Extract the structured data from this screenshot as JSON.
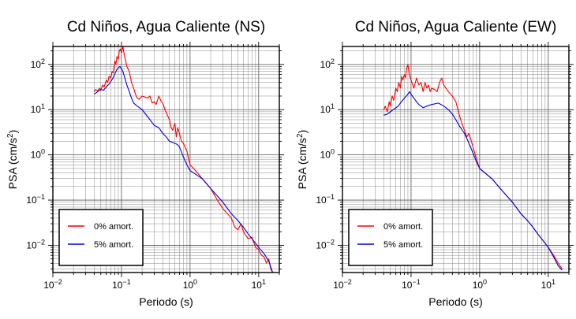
{
  "figure": {
    "background_color": "#ffffff"
  },
  "chart_data": [
    {
      "type": "line",
      "title": "Cd Niños, Agua Caliente (NS)",
      "xlabel": "Periodo (s)",
      "ylabel_text": "PSA (cm/s",
      "ylabel_sup": "2",
      "ylabel_close": ")",
      "xscale": "log",
      "yscale": "log",
      "xlim": [
        0.01,
        20
      ],
      "ylim": [
        0.0025,
        250
      ],
      "grid": true,
      "legend_placement": "bottom-left",
      "x_ticks": [
        {
          "value": 0.01,
          "base": "10",
          "exp": "−2"
        },
        {
          "value": 0.1,
          "base": "10",
          "exp": "−1"
        },
        {
          "value": 1,
          "base": "10",
          "exp": "0"
        },
        {
          "value": 10,
          "base": "10",
          "exp": "1"
        }
      ],
      "y_ticks": [
        {
          "value": 0.01,
          "base": "10",
          "exp": "−2"
        },
        {
          "value": 0.1,
          "base": "10",
          "exp": "−1"
        },
        {
          "value": 1,
          "base": "10",
          "exp": "0"
        },
        {
          "value": 10,
          "base": "10",
          "exp": "1"
        },
        {
          "value": 100,
          "base": "10",
          "exp": "2"
        }
      ],
      "series": [
        {
          "name": "0% amort.",
          "color": "#ff0000",
          "x": [
            0.04,
            0.042,
            0.045,
            0.048,
            0.05,
            0.053,
            0.056,
            0.06,
            0.063,
            0.066,
            0.07,
            0.073,
            0.076,
            0.08,
            0.083,
            0.086,
            0.09,
            0.093,
            0.096,
            0.1,
            0.105,
            0.11,
            0.115,
            0.12,
            0.13,
            0.14,
            0.15,
            0.16,
            0.17,
            0.18,
            0.2,
            0.22,
            0.24,
            0.26,
            0.28,
            0.3,
            0.32,
            0.35,
            0.38,
            0.4,
            0.43,
            0.46,
            0.5,
            0.53,
            0.56,
            0.6,
            0.63,
            0.66,
            0.7,
            0.75,
            0.8,
            0.9,
            1.0,
            1.2,
            1.5,
            2.0,
            2.5,
            3.0,
            3.5,
            4.0,
            4.5,
            5.0,
            5.5,
            6.0,
            7.0,
            8.0,
            9.0,
            10.0,
            11.0,
            12.0,
            13.0,
            14.0,
            15.0,
            16.0
          ],
          "y": [
            25,
            28,
            26,
            30,
            27,
            35,
            32,
            45,
            40,
            55,
            50,
            70,
            65,
            120,
            100,
            150,
            130,
            200,
            220,
            180,
            250,
            160,
            120,
            90,
            70,
            40,
            30,
            22,
            18,
            17,
            20,
            19,
            18,
            20,
            14,
            15,
            13,
            20,
            15,
            14,
            10,
            8,
            6,
            4,
            3.5,
            5,
            2.5,
            4,
            3,
            2,
            1.8,
            1.2,
            0.6,
            0.45,
            0.3,
            0.18,
            0.1,
            0.065,
            0.05,
            0.04,
            0.025,
            0.022,
            0.03,
            0.02,
            0.014,
            0.015,
            0.009,
            0.008,
            0.006,
            0.0055,
            0.004,
            0.005,
            0.003,
            0.0025
          ]
        },
        {
          "name": "5% amort.",
          "color": "#0000dd",
          "x": [
            0.04,
            0.045,
            0.05,
            0.055,
            0.06,
            0.065,
            0.07,
            0.075,
            0.08,
            0.085,
            0.09,
            0.095,
            0.1,
            0.105,
            0.11,
            0.12,
            0.13,
            0.14,
            0.15,
            0.17,
            0.2,
            0.25,
            0.3,
            0.35,
            0.4,
            0.45,
            0.5,
            0.55,
            0.6,
            0.65,
            0.7,
            0.8,
            0.9,
            1.0,
            1.5,
            2.0,
            3.0,
            4.0,
            5.0,
            6.0,
            7.0,
            8.0,
            10.0,
            12.0,
            14.0,
            16.0
          ],
          "y": [
            22,
            25,
            28,
            27,
            32,
            36,
            42,
            50,
            62,
            75,
            85,
            90,
            80,
            70,
            55,
            35,
            25,
            18,
            14,
            12,
            10,
            6.5,
            4.5,
            4.0,
            3.0,
            2.5,
            2.0,
            1.9,
            1.8,
            1.7,
            1.5,
            0.9,
            0.6,
            0.45,
            0.3,
            0.18,
            0.09,
            0.05,
            0.035,
            0.025,
            0.018,
            0.014,
            0.009,
            0.0065,
            0.0045,
            0.0025
          ]
        }
      ]
    },
    {
      "type": "line",
      "title": "Cd Niños, Agua Caliente (EW)",
      "xlabel": "Periodo (s)",
      "ylabel_text": "PSA (cm/s",
      "ylabel_sup": "2",
      "ylabel_close": ")",
      "xscale": "log",
      "yscale": "log",
      "xlim": [
        0.01,
        20
      ],
      "ylim": [
        0.0025,
        250
      ],
      "grid": true,
      "legend_placement": "bottom-left",
      "x_ticks": [
        {
          "value": 0.01,
          "base": "10",
          "exp": "−2"
        },
        {
          "value": 0.1,
          "base": "10",
          "exp": "−1"
        },
        {
          "value": 1,
          "base": "10",
          "exp": "0"
        },
        {
          "value": 10,
          "base": "10",
          "exp": "1"
        }
      ],
      "y_ticks": [
        {
          "value": 0.01,
          "base": "10",
          "exp": "−2"
        },
        {
          "value": 0.1,
          "base": "10",
          "exp": "−1"
        },
        {
          "value": 1,
          "base": "10",
          "exp": "0"
        },
        {
          "value": 10,
          "base": "10",
          "exp": "1"
        },
        {
          "value": 100,
          "base": "10",
          "exp": "2"
        }
      ],
      "series": [
        {
          "name": "0% amort.",
          "color": "#ff0000",
          "x": [
            0.04,
            0.042,
            0.045,
            0.048,
            0.05,
            0.053,
            0.056,
            0.06,
            0.063,
            0.066,
            0.07,
            0.073,
            0.076,
            0.08,
            0.083,
            0.086,
            0.09,
            0.093,
            0.096,
            0.1,
            0.11,
            0.12,
            0.13,
            0.14,
            0.15,
            0.16,
            0.17,
            0.18,
            0.19,
            0.2,
            0.22,
            0.24,
            0.26,
            0.28,
            0.3,
            0.35,
            0.4,
            0.45,
            0.5,
            0.55,
            0.6,
            0.65,
            0.7,
            0.8,
            0.9,
            1.0,
            1.5,
            2.0,
            3.0,
            4.0,
            5.0,
            6.0,
            7.0,
            8.0,
            10.0,
            12.0,
            14.0,
            16.0
          ],
          "y": [
            10,
            12,
            9,
            15,
            12,
            20,
            16,
            30,
            25,
            40,
            30,
            55,
            45,
            60,
            50,
            80,
            100,
            70,
            55,
            45,
            30,
            50,
            35,
            40,
            25,
            40,
            30,
            35,
            25,
            30,
            28,
            25,
            40,
            50,
            35,
            25,
            20,
            15,
            8,
            5,
            3.5,
            2.5,
            3,
            1.5,
            0.8,
            0.5,
            0.3,
            0.18,
            0.09,
            0.05,
            0.035,
            0.025,
            0.018,
            0.014,
            0.009,
            0.006,
            0.004,
            0.003
          ]
        },
        {
          "name": "5% amort.",
          "color": "#0000dd",
          "x": [
            0.04,
            0.045,
            0.05,
            0.055,
            0.06,
            0.065,
            0.07,
            0.075,
            0.08,
            0.085,
            0.09,
            0.095,
            0.1,
            0.11,
            0.12,
            0.13,
            0.14,
            0.15,
            0.17,
            0.2,
            0.25,
            0.3,
            0.35,
            0.4,
            0.45,
            0.5,
            0.6,
            0.7,
            0.8,
            0.9,
            1.0,
            1.5,
            2.0,
            3.0,
            4.0,
            5.0,
            6.0,
            7.0,
            8.0,
            10.0,
            12.0,
            14.0,
            16.0
          ],
          "y": [
            7.5,
            8,
            9,
            10,
            11,
            12,
            14,
            16,
            18,
            20,
            22,
            25,
            22,
            18,
            15,
            13,
            12,
            11,
            12,
            13,
            14,
            12,
            10,
            8,
            6,
            4.5,
            3,
            1.8,
            1.1,
            0.7,
            0.5,
            0.3,
            0.18,
            0.09,
            0.05,
            0.035,
            0.025,
            0.018,
            0.014,
            0.009,
            0.0055,
            0.0035,
            0.0028
          ]
        }
      ]
    }
  ]
}
